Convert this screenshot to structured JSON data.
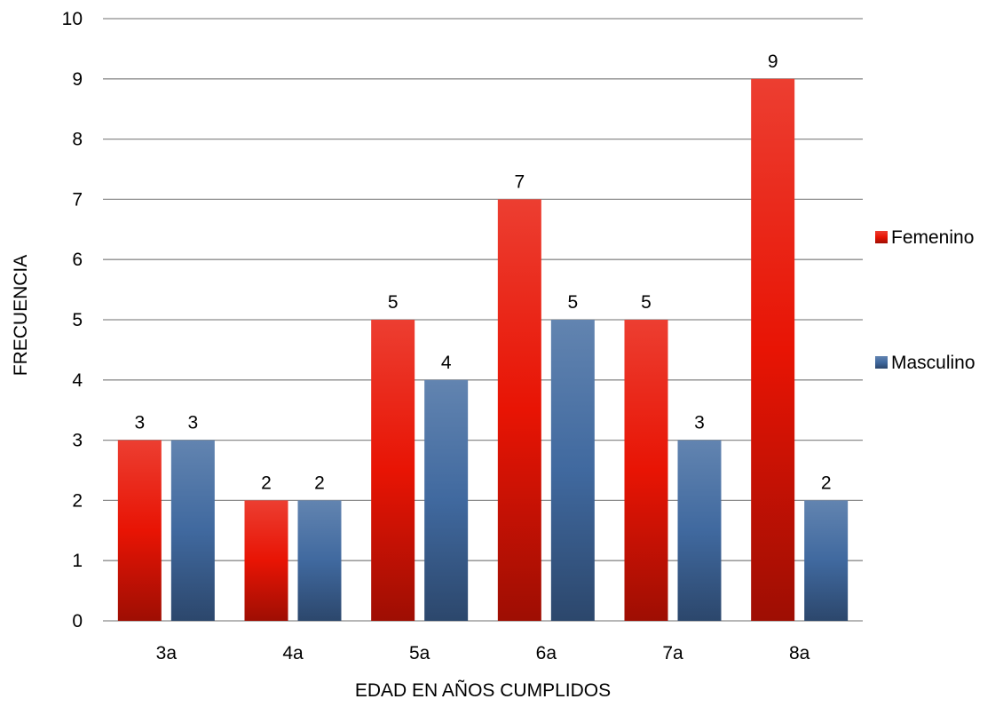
{
  "chart_data": {
    "type": "bar",
    "categories": [
      "3a",
      "4a",
      "5a",
      "6a",
      "7a",
      "8a"
    ],
    "series": [
      {
        "name": "Femenino",
        "values": [
          3,
          2,
          5,
          7,
          5,
          9
        ],
        "color": "#e81404"
      },
      {
        "name": "Masculino",
        "values": [
          3,
          2,
          4,
          5,
          3,
          2
        ],
        "color": "#40699f"
      }
    ],
    "xlabel": "EDAD EN AÑOS CUMPLIDOS",
    "ylabel": "FRECUENCIA",
    "ylim": [
      0,
      10
    ],
    "yticks": [
      0,
      1,
      2,
      3,
      4,
      5,
      6,
      7,
      8,
      9,
      10
    ],
    "grid": true,
    "legend_position": "right",
    "data_labels": true
  }
}
